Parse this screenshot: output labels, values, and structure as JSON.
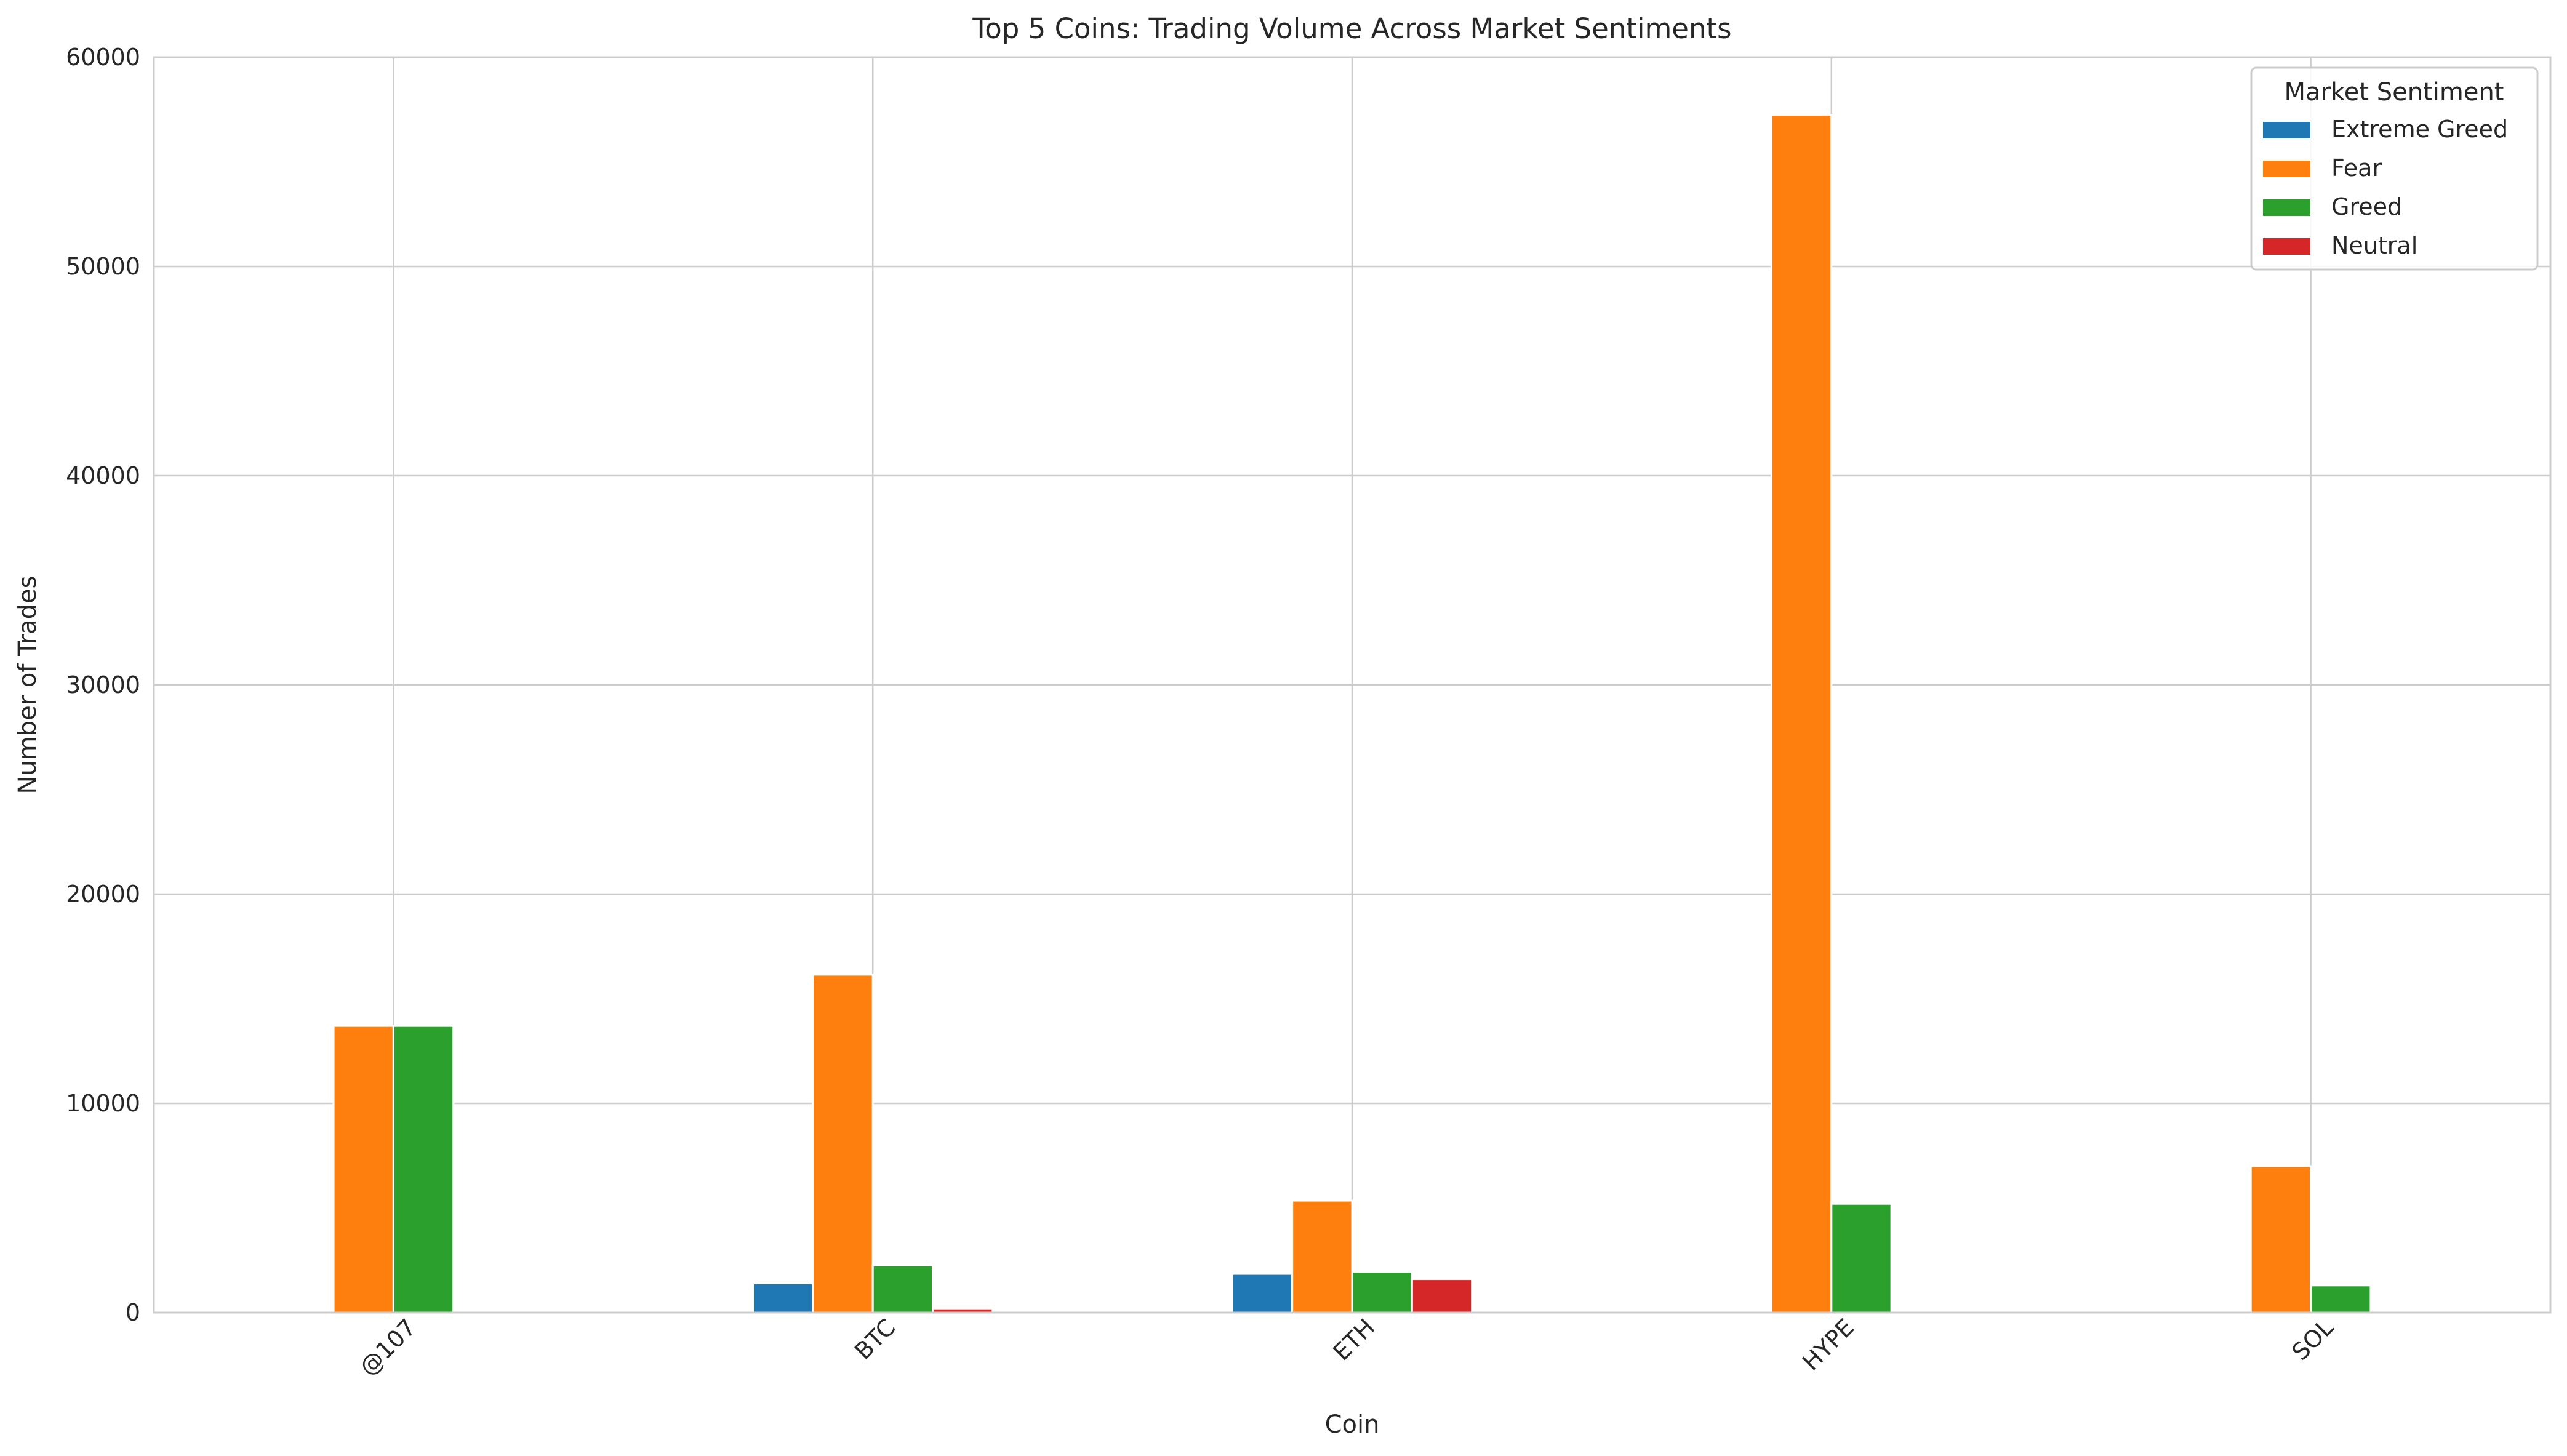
{
  "chart_data": {
    "type": "bar",
    "title": "Top 5 Coins: Trading Volume Across Market Sentiments",
    "xlabel": "Coin",
    "ylabel": "Number of Trades",
    "categories": [
      "@107",
      "BTC",
      "ETH",
      "HYPE",
      "SOL"
    ],
    "ylim": [
      0,
      60000
    ],
    "yticks": [
      0,
      10000,
      20000,
      30000,
      40000,
      50000,
      60000
    ],
    "grid": true,
    "legend": {
      "title": "Market Sentiment",
      "placement": "top-right"
    },
    "series": [
      {
        "name": "Extreme Greed",
        "color": "#1f77b4",
        "values": [
          0,
          1400,
          1850,
          0,
          0
        ]
      },
      {
        "name": "Fear",
        "color": "#ff7f0e",
        "values": [
          13700,
          16150,
          5350,
          57250,
          7000
        ]
      },
      {
        "name": "Greed",
        "color": "#2ca02c",
        "values": [
          13700,
          2250,
          1950,
          5200,
          1300
        ]
      },
      {
        "name": "Neutral",
        "color": "#d62728",
        "values": [
          0,
          200,
          1600,
          0,
          0
        ]
      }
    ]
  }
}
